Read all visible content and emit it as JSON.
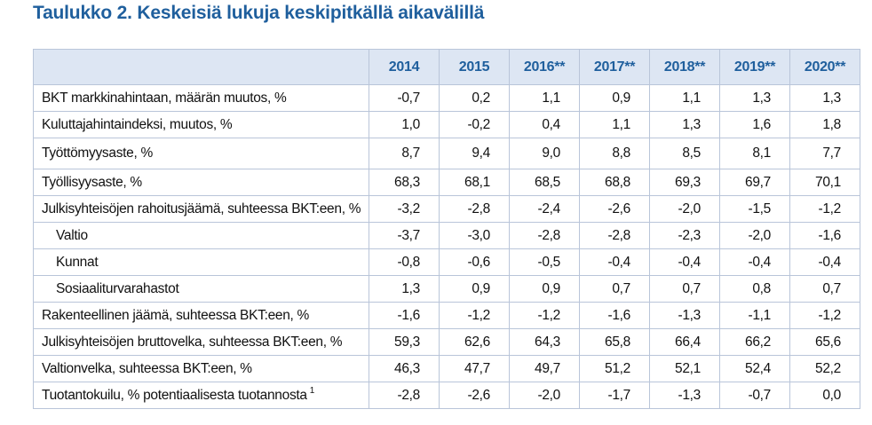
{
  "title": "Taulukko 2. Keskeisiä lukuja keskipitkällä aikavälillä",
  "columns": [
    "2014",
    "2015",
    "2016**",
    "2017**",
    "2018**",
    "2019**",
    "2020**"
  ],
  "rows": [
    {
      "label": "BKT markkinahintaan, määrän muutos, %",
      "indent": false,
      "footnote": "",
      "values": [
        "-0,7",
        "0,2",
        "1,1",
        "0,9",
        "1,1",
        "1,3",
        "1,3"
      ]
    },
    {
      "label": "Kuluttajahintaindeksi, muutos, %",
      "indent": false,
      "footnote": "",
      "values": [
        "1,0",
        "-0,2",
        "0,4",
        "1,1",
        "1,3",
        "1,6",
        "1,8"
      ]
    },
    {
      "label": "Työttömyysaste, %",
      "indent": false,
      "footnote": "",
      "values": [
        "8,7",
        "9,4",
        "9,0",
        "8,8",
        "8,5",
        "8,1",
        "7,7"
      ]
    },
    {
      "label": "Työllisyysaste, %",
      "indent": false,
      "footnote": "",
      "values": [
        "68,3",
        "68,1",
        "68,5",
        "68,8",
        "69,3",
        "69,7",
        "70,1"
      ]
    },
    {
      "label": "Julkisyhteisöjen rahoitusjäämä, suhteessa BKT:een, %",
      "indent": false,
      "footnote": "",
      "values": [
        "-3,2",
        "-2,8",
        "-2,4",
        "-2,6",
        "-2,0",
        "-1,5",
        "-1,2"
      ]
    },
    {
      "label": "Valtio",
      "indent": true,
      "footnote": "",
      "values": [
        "-3,7",
        "-3,0",
        "-2,8",
        "-2,8",
        "-2,3",
        "-2,0",
        "-1,6"
      ]
    },
    {
      "label": "Kunnat",
      "indent": true,
      "footnote": "",
      "values": [
        "-0,8",
        "-0,6",
        "-0,5",
        "-0,4",
        "-0,4",
        "-0,4",
        "-0,4"
      ]
    },
    {
      "label": "Sosiaaliturvarahastot",
      "indent": true,
      "footnote": "",
      "values": [
        "1,3",
        "0,9",
        "0,9",
        "0,7",
        "0,7",
        "0,8",
        "0,7"
      ]
    },
    {
      "label": "Rakenteellinen jäämä, suhteessa BKT:een, %",
      "indent": false,
      "footnote": "",
      "values": [
        "-1,6",
        "-1,2",
        "-1,2",
        "-1,6",
        "-1,3",
        "-1,1",
        "-1,2"
      ]
    },
    {
      "label": "Julkisyhteisöjen bruttovelka, suhteessa BKT:een, %",
      "indent": false,
      "footnote": "",
      "values": [
        "59,3",
        "62,6",
        "64,3",
        "65,8",
        "66,4",
        "66,2",
        "65,6"
      ]
    },
    {
      "label": "Valtionvelka, suhteessa BKT:een, %",
      "indent": false,
      "footnote": "",
      "values": [
        "46,3",
        "47,7",
        "49,7",
        "51,2",
        "52,1",
        "52,4",
        "52,2"
      ]
    },
    {
      "label": "Tuotantokuilu, % potentiaalisesta tuotannosta",
      "indent": false,
      "footnote": "1",
      "values": [
        "-2,8",
        "-2,6",
        "-2,0",
        "-1,7",
        "-1,3",
        "-0,7",
        "0,0"
      ]
    }
  ],
  "colors": {
    "title": "#1f5f9d",
    "header_text": "#1f5f9d",
    "header_background": "#dde6f3",
    "border": "#b9c5d9"
  }
}
